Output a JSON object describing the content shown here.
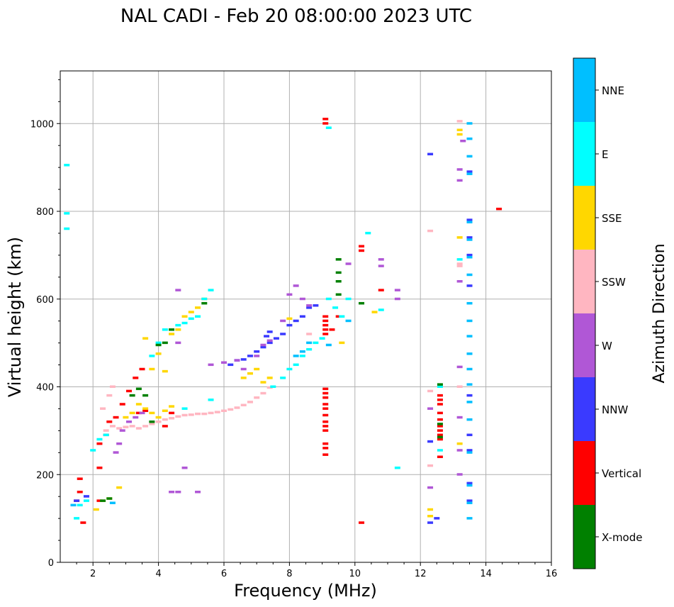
{
  "chart_data": {
    "type": "scatter",
    "title": "NAL CADI - Feb 20 08:00:00 2023 UTC",
    "xlabel": "Frequency (MHz)",
    "ylabel": "Virtual height (km)",
    "xlim": [
      1,
      16
    ],
    "ylim": [
      0,
      1120
    ],
    "x_ticks": [
      2,
      4,
      6,
      8,
      10,
      12,
      14,
      16
    ],
    "x_tick_labels": [
      "2",
      "4",
      "6",
      "8",
      "10",
      "12",
      "14",
      "16"
    ],
    "y_ticks": [
      0,
      200,
      400,
      600,
      800,
      1000
    ],
    "y_tick_labels": [
      "0",
      "200",
      "400",
      "600",
      "800",
      "1000"
    ],
    "grid": true,
    "colorbar": {
      "label": "Azimuth Direction",
      "categories": [
        "X-mode",
        "Vertical",
        "NNW",
        "W",
        "SSW",
        "SSE",
        "E",
        "NNE"
      ],
      "colors": [
        "#008000",
        "#ff0000",
        "#3a3aff",
        "#b057d6",
        "#ffb6c1",
        "#ffd700",
        "#00ffff",
        "#00bfff"
      ]
    },
    "series": [
      {
        "name": "SSW",
        "points": [
          [
            2.4,
            300
          ],
          [
            2.6,
            310
          ],
          [
            2.8,
            305
          ],
          [
            3.0,
            308
          ],
          [
            3.2,
            310
          ],
          [
            3.4,
            305
          ],
          [
            3.6,
            310
          ],
          [
            3.8,
            315
          ],
          [
            4.0,
            320
          ],
          [
            4.2,
            325
          ],
          [
            4.4,
            328
          ],
          [
            4.6,
            332
          ],
          [
            4.8,
            335
          ],
          [
            5.0,
            336
          ],
          [
            5.2,
            338
          ],
          [
            5.4,
            338
          ],
          [
            5.6,
            340
          ],
          [
            5.8,
            342
          ],
          [
            6.0,
            345
          ],
          [
            6.2,
            348
          ],
          [
            6.4,
            352
          ],
          [
            6.6,
            358
          ],
          [
            6.8,
            365
          ],
          [
            7.0,
            375
          ],
          [
            7.2,
            385
          ],
          [
            7.4,
            398
          ],
          [
            2.3,
            350
          ],
          [
            2.5,
            380
          ],
          [
            2.6,
            400
          ],
          [
            12.3,
            390
          ],
          [
            12.3,
            220
          ],
          [
            12.3,
            755
          ],
          [
            13.2,
            680
          ],
          [
            13.2,
            675
          ],
          [
            13.2,
            400
          ],
          [
            13.2,
            1005
          ],
          [
            8.6,
            520
          ]
        ]
      },
      {
        "name": "Vertical",
        "points": [
          [
            2.2,
            270
          ],
          [
            2.4,
            290
          ],
          [
            2.5,
            320
          ],
          [
            2.7,
            330
          ],
          [
            2.9,
            360
          ],
          [
            3.1,
            390
          ],
          [
            3.3,
            420
          ],
          [
            3.5,
            440
          ],
          [
            3.4,
            340
          ],
          [
            3.6,
            345
          ],
          [
            4.4,
            340
          ],
          [
            4.2,
            310
          ],
          [
            9.1,
            1010
          ],
          [
            9.1,
            1000
          ],
          [
            9.1,
            395
          ],
          [
            9.1,
            385
          ],
          [
            9.1,
            375
          ],
          [
            9.1,
            360
          ],
          [
            9.1,
            350
          ],
          [
            9.1,
            335
          ],
          [
            9.1,
            320
          ],
          [
            9.1,
            310
          ],
          [
            9.1,
            300
          ],
          [
            9.1,
            270
          ],
          [
            9.1,
            260
          ],
          [
            9.1,
            245
          ],
          [
            9.1,
            560
          ],
          [
            9.1,
            550
          ],
          [
            9.1,
            540
          ],
          [
            9.1,
            530
          ],
          [
            9.1,
            520
          ],
          [
            9.5,
            560
          ],
          [
            9.3,
            530
          ],
          [
            10.2,
            720
          ],
          [
            10.2,
            710
          ],
          [
            10.2,
            90
          ],
          [
            10.8,
            620
          ],
          [
            12.6,
            380
          ],
          [
            12.6,
            370
          ],
          [
            12.6,
            360
          ],
          [
            12.6,
            340
          ],
          [
            12.6,
            325
          ],
          [
            12.6,
            310
          ],
          [
            12.6,
            300
          ],
          [
            12.6,
            290
          ],
          [
            12.6,
            280
          ],
          [
            12.6,
            240
          ],
          [
            14.4,
            805
          ],
          [
            1.5,
            140
          ],
          [
            1.6,
            160
          ],
          [
            1.6,
            190
          ],
          [
            2.2,
            140
          ],
          [
            2.2,
            215
          ],
          [
            1.7,
            90
          ]
        ]
      },
      {
        "name": "NNW",
        "points": [
          [
            6.2,
            450
          ],
          [
            6.4,
            460
          ],
          [
            6.6,
            462
          ],
          [
            6.8,
            470
          ],
          [
            7.0,
            480
          ],
          [
            7.2,
            490
          ],
          [
            7.4,
            500
          ],
          [
            7.6,
            510
          ],
          [
            7.8,
            520
          ],
          [
            8.0,
            540
          ],
          [
            8.2,
            550
          ],
          [
            8.4,
            560
          ],
          [
            8.6,
            580
          ],
          [
            8.8,
            585
          ],
          [
            7.3,
            515
          ],
          [
            7.4,
            525
          ],
          [
            12.3,
            930
          ],
          [
            13.5,
            890
          ],
          [
            13.5,
            780
          ],
          [
            13.5,
            740
          ],
          [
            13.5,
            700
          ],
          [
            13.5,
            630
          ],
          [
            13.5,
            380
          ],
          [
            13.5,
            290
          ],
          [
            13.5,
            255
          ],
          [
            13.5,
            180
          ],
          [
            13.5,
            140
          ],
          [
            12.3,
            275
          ],
          [
            12.3,
            90
          ],
          [
            12.5,
            100
          ],
          [
            1.5,
            140
          ],
          [
            1.8,
            150
          ]
        ]
      },
      {
        "name": "W",
        "points": [
          [
            5.6,
            450
          ],
          [
            6.0,
            455
          ],
          [
            6.4,
            460
          ],
          [
            6.6,
            440
          ],
          [
            7.0,
            470
          ],
          [
            7.2,
            495
          ],
          [
            7.4,
            505
          ],
          [
            7.8,
            550
          ],
          [
            8.0,
            610
          ],
          [
            8.2,
            630
          ],
          [
            8.4,
            600
          ],
          [
            8.6,
            585
          ],
          [
            2.7,
            250
          ],
          [
            2.8,
            270
          ],
          [
            2.9,
            300
          ],
          [
            3.1,
            320
          ],
          [
            3.3,
            330
          ],
          [
            3.5,
            340
          ],
          [
            4.6,
            620
          ],
          [
            4.6,
            500
          ],
          [
            4.4,
            160
          ],
          [
            4.6,
            160
          ],
          [
            4.8,
            215
          ],
          [
            5.2,
            160
          ],
          [
            12.3,
            350
          ],
          [
            12.3,
            170
          ],
          [
            13.2,
            895
          ],
          [
            13.2,
            870
          ],
          [
            13.2,
            640
          ],
          [
            13.2,
            445
          ],
          [
            13.2,
            330
          ],
          [
            13.2,
            255
          ],
          [
            13.2,
            200
          ],
          [
            13.3,
            960
          ],
          [
            10.8,
            690
          ],
          [
            10.8,
            675
          ],
          [
            11.3,
            620
          ],
          [
            11.3,
            600
          ],
          [
            9.8,
            680
          ]
        ]
      },
      {
        "name": "SSE",
        "points": [
          [
            2.1,
            120
          ],
          [
            2.3,
            140
          ],
          [
            2.5,
            145
          ],
          [
            2.8,
            170
          ],
          [
            3.0,
            330
          ],
          [
            3.2,
            340
          ],
          [
            3.4,
            360
          ],
          [
            3.6,
            350
          ],
          [
            3.8,
            340
          ],
          [
            4.0,
            330
          ],
          [
            4.2,
            345
          ],
          [
            4.4,
            355
          ],
          [
            3.6,
            510
          ],
          [
            3.8,
            440
          ],
          [
            4.0,
            475
          ],
          [
            4.2,
            435
          ],
          [
            4.4,
            520
          ],
          [
            4.6,
            530
          ],
          [
            4.8,
            560
          ],
          [
            5.0,
            570
          ],
          [
            5.2,
            580
          ],
          [
            5.4,
            600
          ],
          [
            6.6,
            420
          ],
          [
            6.8,
            430
          ],
          [
            7.0,
            440
          ],
          [
            7.2,
            410
          ],
          [
            7.4,
            420
          ],
          [
            10.6,
            570
          ],
          [
            12.3,
            120
          ],
          [
            12.3,
            105
          ],
          [
            13.2,
            985
          ],
          [
            13.2,
            975
          ],
          [
            13.2,
            740
          ],
          [
            13.2,
            270
          ],
          [
            9.6,
            500
          ],
          [
            8.0,
            555
          ]
        ]
      },
      {
        "name": "E",
        "points": [
          [
            1.2,
            905
          ],
          [
            1.2,
            795
          ],
          [
            1.2,
            760
          ],
          [
            1.5,
            100
          ],
          [
            1.6,
            130
          ],
          [
            1.8,
            140
          ],
          [
            2.0,
            255
          ],
          [
            2.2,
            280
          ],
          [
            2.4,
            290
          ],
          [
            3.8,
            470
          ],
          [
            4.0,
            500
          ],
          [
            4.2,
            530
          ],
          [
            4.6,
            540
          ],
          [
            4.8,
            545
          ],
          [
            5.0,
            555
          ],
          [
            5.2,
            560
          ],
          [
            5.4,
            600
          ],
          [
            5.6,
            620
          ],
          [
            7.5,
            400
          ],
          [
            7.8,
            420
          ],
          [
            8.0,
            440
          ],
          [
            8.2,
            450
          ],
          [
            8.4,
            470
          ],
          [
            8.6,
            485
          ],
          [
            8.8,
            500
          ],
          [
            9.0,
            510
          ],
          [
            9.2,
            600
          ],
          [
            9.4,
            580
          ],
          [
            9.6,
            560
          ],
          [
            9.8,
            600
          ],
          [
            10.4,
            750
          ],
          [
            10.8,
            575
          ],
          [
            11.3,
            215
          ],
          [
            12.6,
            400
          ],
          [
            12.6,
            255
          ],
          [
            13.2,
            690
          ],
          [
            9.2,
            990
          ],
          [
            4.8,
            350
          ],
          [
            5.6,
            370
          ]
        ]
      },
      {
        "name": "NNE",
        "points": [
          [
            13.5,
            1000
          ],
          [
            13.5,
            965
          ],
          [
            13.5,
            925
          ],
          [
            13.5,
            885
          ],
          [
            13.5,
            775
          ],
          [
            13.5,
            735
          ],
          [
            13.5,
            695
          ],
          [
            13.5,
            655
          ],
          [
            13.5,
            590
          ],
          [
            13.5,
            550
          ],
          [
            13.5,
            515
          ],
          [
            13.5,
            475
          ],
          [
            13.5,
            440
          ],
          [
            13.5,
            405
          ],
          [
            13.5,
            365
          ],
          [
            13.5,
            325
          ],
          [
            13.5,
            250
          ],
          [
            13.5,
            175
          ],
          [
            13.5,
            135
          ],
          [
            13.5,
            100
          ],
          [
            8.4,
            480
          ],
          [
            8.6,
            500
          ],
          [
            8.2,
            470
          ],
          [
            1.4,
            130
          ],
          [
            2.6,
            135
          ],
          [
            9.8,
            550
          ],
          [
            9.2,
            495
          ]
        ]
      },
      {
        "name": "X-mode",
        "points": [
          [
            2.3,
            140
          ],
          [
            2.5,
            145
          ],
          [
            3.2,
            380
          ],
          [
            3.4,
            395
          ],
          [
            3.6,
            380
          ],
          [
            4.0,
            495
          ],
          [
            4.2,
            500
          ],
          [
            3.8,
            320
          ],
          [
            9.5,
            690
          ],
          [
            9.5,
            660
          ],
          [
            9.5,
            640
          ],
          [
            9.5,
            610
          ],
          [
            10.2,
            590
          ],
          [
            12.6,
            405
          ],
          [
            12.6,
            315
          ],
          [
            12.6,
            285
          ],
          [
            4.4,
            530
          ],
          [
            5.4,
            590
          ]
        ]
      }
    ]
  }
}
